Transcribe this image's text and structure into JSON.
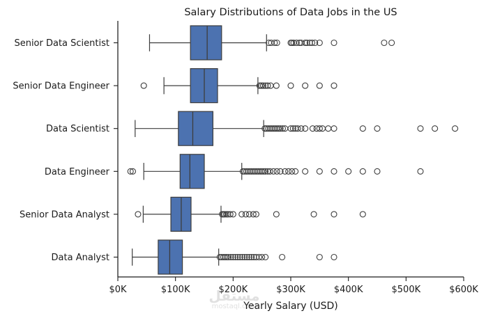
{
  "chart_data": {
    "type": "box",
    "orientation": "horizontal",
    "title": "Salary Distributions of Data Jobs in the US",
    "xlabel": "Yearly Salary (USD)",
    "ylabel": "",
    "xlim": [
      0,
      600000
    ],
    "xticks": [
      0,
      100000,
      200000,
      300000,
      400000,
      500000,
      600000
    ],
    "xtick_labels": [
      "$0K",
      "$100K",
      "$200K",
      "$300K",
      "$400K",
      "$500K",
      "$600K"
    ],
    "grid": false,
    "box_color": "#4c72b0",
    "line_color": "#3d3d3d",
    "categories": [
      "Senior Data Scientist",
      "Senior Data Engineer",
      "Data Scientist",
      "Data Engineer",
      "Senior Data Analyst",
      "Data Analyst"
    ],
    "boxes": [
      {
        "label": "Senior Data Scientist",
        "whislo": 55000,
        "q1": 126000,
        "med": 155000,
        "q3": 180000,
        "whishi": 258000,
        "fliers": [
          262000,
          266000,
          272000,
          276000,
          300000,
          302000,
          305000,
          310000,
          315000,
          318000,
          325000,
          328000,
          333000,
          337000,
          342000,
          350000,
          375000,
          462000,
          475000
        ]
      },
      {
        "label": "Senior Data Engineer",
        "whislo": 80000,
        "q1": 126000,
        "med": 150000,
        "q3": 173000,
        "whishi": 243000,
        "fliers": [
          45000,
          246000,
          249000,
          252000,
          256000,
          260000,
          265000,
          275000,
          300000,
          325000,
          350000,
          375000
        ]
      },
      {
        "label": "Data Scientist",
        "whislo": 30000,
        "q1": 105000,
        "med": 130000,
        "q3": 165000,
        "whishi": 253000,
        "fliers": [
          255000,
          258000,
          261000,
          264000,
          267000,
          270000,
          273000,
          276000,
          279000,
          282000,
          286000,
          290000,
          300000,
          304000,
          308000,
          312000,
          318000,
          325000,
          338000,
          345000,
          350000,
          355000,
          365000,
          375000,
          425000,
          450000,
          525000,
          550000,
          585000
        ]
      },
      {
        "label": "Data Engineer",
        "whislo": 45000,
        "q1": 108000,
        "med": 125000,
        "q3": 150000,
        "whishi": 215000,
        "fliers": [
          22000,
          26000,
          217000,
          220000,
          223000,
          226000,
          229000,
          232000,
          235000,
          238000,
          241000,
          244000,
          247000,
          250000,
          253000,
          256000,
          260000,
          264000,
          270000,
          276000,
          282000,
          290000,
          296000,
          302000,
          308000,
          325000,
          350000,
          375000,
          400000,
          425000,
          450000,
          525000
        ]
      },
      {
        "label": "Senior Data Analyst",
        "whislo": 44000,
        "q1": 92000,
        "med": 110000,
        "q3": 127000,
        "whishi": 179000,
        "fliers": [
          35000,
          181000,
          183000,
          185000,
          188000,
          191000,
          195000,
          200000,
          215000,
          222000,
          228000,
          235000,
          240000,
          275000,
          340000,
          375000,
          425000
        ]
      },
      {
        "label": "Data Analyst",
        "whislo": 25000,
        "q1": 70000,
        "med": 90000,
        "q3": 112000,
        "whishi": 175000,
        "fliers": [
          177000,
          180000,
          183000,
          186000,
          189000,
          192000,
          196000,
          200000,
          204000,
          208000,
          212000,
          216000,
          220000,
          224000,
          228000,
          232000,
          236000,
          240000,
          245000,
          250000,
          256000,
          285000,
          350000,
          375000
        ]
      }
    ]
  },
  "watermark": {
    "line1": "مستقل",
    "line2": "mostaql.com"
  }
}
